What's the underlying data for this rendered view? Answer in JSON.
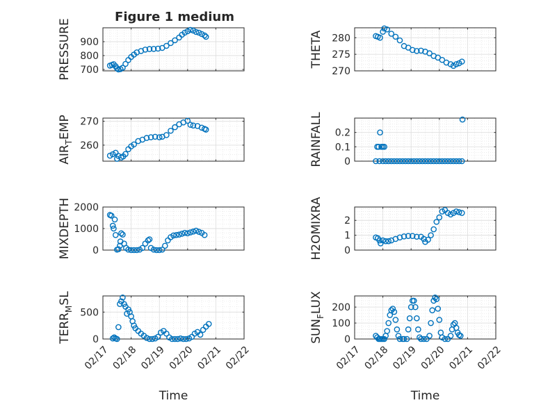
{
  "figure": {
    "title": "Figure 1 medium",
    "xlabel": "Time",
    "background": "#ffffff",
    "axis_color": "#262626",
    "grid_color": "#dfdfdf",
    "marker_color": "#0072bd"
  },
  "chart_data": [
    {
      "type": "scatter",
      "title": "Figure 1 medium",
      "ylabel": "PRESSURE",
      "ylabel_sub": "",
      "xlim": [
        "2024-02-17",
        "2024-02-22"
      ],
      "ylim": [
        690,
        1000
      ],
      "yticks": [
        700,
        800,
        900
      ],
      "xtick_labels": [],
      "xlabel": "",
      "grid": "on",
      "points": [
        [
          0.25,
          728
        ],
        [
          0.32,
          733
        ],
        [
          0.38,
          738
        ],
        [
          0.45,
          723
        ],
        [
          0.5,
          708
        ],
        [
          0.55,
          700
        ],
        [
          0.62,
          703
        ],
        [
          0.7,
          712
        ],
        [
          0.8,
          740
        ],
        [
          0.9,
          768
        ],
        [
          1.0,
          790
        ],
        [
          1.1,
          807
        ],
        [
          1.2,
          823
        ],
        [
          1.35,
          833
        ],
        [
          1.5,
          843
        ],
        [
          1.65,
          847
        ],
        [
          1.8,
          848
        ],
        [
          1.95,
          850
        ],
        [
          2.1,
          855
        ],
        [
          2.25,
          870
        ],
        [
          2.4,
          890
        ],
        [
          2.55,
          910
        ],
        [
          2.7,
          930
        ],
        [
          2.8,
          950
        ],
        [
          2.9,
          965
        ],
        [
          3.0,
          975
        ],
        [
          3.1,
          985
        ],
        [
          3.2,
          980
        ],
        [
          3.3,
          970
        ],
        [
          3.4,
          965
        ],
        [
          3.5,
          955
        ],
        [
          3.6,
          945
        ],
        [
          3.65,
          935
        ]
      ]
    },
    {
      "type": "scatter",
      "title": "",
      "ylabel": "THETA",
      "ylabel_sub": "",
      "xlim": [
        "2024-02-17",
        "2024-02-22"
      ],
      "ylim": [
        270,
        283
      ],
      "yticks": [
        270,
        275,
        280
      ],
      "xtick_labels": [],
      "xlabel": "",
      "grid": "on",
      "points": [
        [
          0.75,
          280.5
        ],
        [
          0.82,
          280.3
        ],
        [
          0.9,
          280.0
        ],
        [
          1.0,
          281.8
        ],
        [
          1.05,
          282.8
        ],
        [
          1.15,
          282.5
        ],
        [
          1.3,
          281.2
        ],
        [
          1.45,
          280.3
        ],
        [
          1.6,
          279.2
        ],
        [
          1.75,
          277.5
        ],
        [
          1.9,
          277.0
        ],
        [
          2.05,
          276.3
        ],
        [
          2.2,
          276.0
        ],
        [
          2.35,
          276.1
        ],
        [
          2.5,
          275.8
        ],
        [
          2.65,
          275.3
        ],
        [
          2.8,
          274.5
        ],
        [
          2.95,
          274.0
        ],
        [
          3.1,
          273.3
        ],
        [
          3.25,
          272.5
        ],
        [
          3.4,
          272.0
        ],
        [
          3.5,
          271.5
        ],
        [
          3.6,
          272.0
        ],
        [
          3.7,
          272.3
        ],
        [
          3.8,
          272.8
        ]
      ]
    },
    {
      "type": "scatter",
      "title": "",
      "ylabel": "AIR",
      "ylabel_sub": "T",
      "ylabel_after": "EMP",
      "xlim": [
        "2024-02-17",
        "2024-02-22"
      ],
      "ylim": [
        253.3,
        271.3
      ],
      "yticks": [
        260,
        270
      ],
      "xtick_labels": [],
      "xlabel": "",
      "grid": "on",
      "points": [
        [
          0.25,
          255.6
        ],
        [
          0.35,
          256.2
        ],
        [
          0.45,
          256.8
        ],
        [
          0.5,
          254.3
        ],
        [
          0.55,
          255.5
        ],
        [
          0.65,
          254.8
        ],
        [
          0.72,
          255.3
        ],
        [
          0.8,
          256.3
        ],
        [
          0.9,
          258.3
        ],
        [
          1.0,
          259.5
        ],
        [
          1.1,
          260.3
        ],
        [
          1.25,
          261.7
        ],
        [
          1.4,
          262.3
        ],
        [
          1.55,
          263.0
        ],
        [
          1.7,
          263.3
        ],
        [
          1.85,
          263.5
        ],
        [
          2.0,
          263.3
        ],
        [
          2.1,
          263.5
        ],
        [
          2.25,
          264.2
        ],
        [
          2.4,
          266.0
        ],
        [
          2.55,
          267.5
        ],
        [
          2.7,
          268.7
        ],
        [
          2.85,
          269.5
        ],
        [
          3.0,
          270.2
        ],
        [
          3.1,
          268.5
        ],
        [
          3.2,
          268.2
        ],
        [
          3.35,
          268.0
        ],
        [
          3.5,
          267.3
        ],
        [
          3.6,
          266.8
        ],
        [
          3.65,
          266.5
        ]
      ]
    },
    {
      "type": "scatter",
      "title": "",
      "ylabel": "RAINFALL",
      "ylabel_sub": "",
      "xlim": [
        "2024-02-17",
        "2024-02-22"
      ],
      "ylim": [
        0,
        0.3
      ],
      "yticks": [
        0,
        0.1,
        0.2
      ],
      "xtick_labels": [],
      "xlabel": "",
      "grid": "on",
      "points": [
        [
          0.75,
          0
        ],
        [
          0.8,
          0.1
        ],
        [
          0.85,
          0.1
        ],
        [
          0.88,
          0
        ],
        [
          0.9,
          0.2
        ],
        [
          0.95,
          0.1
        ],
        [
          1.0,
          0.1
        ],
        [
          1.05,
          0.1
        ],
        [
          1.0,
          0
        ],
        [
          1.1,
          0
        ],
        [
          1.2,
          0
        ],
        [
          1.3,
          0
        ],
        [
          1.4,
          0
        ],
        [
          1.5,
          0
        ],
        [
          1.6,
          0
        ],
        [
          1.7,
          0
        ],
        [
          1.8,
          0
        ],
        [
          1.9,
          0
        ],
        [
          2.0,
          0
        ],
        [
          2.1,
          0
        ],
        [
          2.2,
          0
        ],
        [
          2.3,
          0
        ],
        [
          2.4,
          0
        ],
        [
          2.5,
          0
        ],
        [
          2.6,
          0
        ],
        [
          2.7,
          0
        ],
        [
          2.8,
          0
        ],
        [
          2.9,
          0
        ],
        [
          3.0,
          0
        ],
        [
          3.1,
          0
        ],
        [
          3.2,
          0
        ],
        [
          3.3,
          0
        ],
        [
          3.4,
          0
        ],
        [
          3.5,
          0
        ],
        [
          3.6,
          0
        ],
        [
          3.7,
          0
        ],
        [
          3.8,
          0
        ],
        [
          3.82,
          0.29
        ]
      ]
    },
    {
      "type": "scatter",
      "title": "",
      "ylabel": "MIXDEPTH",
      "ylabel_sub": "",
      "xlim": [
        "2024-02-17",
        "2024-02-22"
      ],
      "ylim": [
        0,
        2000
      ],
      "yticks": [
        0,
        1000,
        2000
      ],
      "xtick_labels": [],
      "xlabel": "",
      "grid": "on",
      "points": [
        [
          0.25,
          1630
        ],
        [
          0.3,
          1600
        ],
        [
          0.35,
          1130
        ],
        [
          0.38,
          1000
        ],
        [
          0.42,
          1420
        ],
        [
          0.45,
          700
        ],
        [
          0.5,
          20
        ],
        [
          0.55,
          40
        ],
        [
          0.6,
          200
        ],
        [
          0.62,
          400
        ],
        [
          0.65,
          780
        ],
        [
          0.7,
          720
        ],
        [
          0.75,
          300
        ],
        [
          0.82,
          100
        ],
        [
          0.9,
          20
        ],
        [
          1.0,
          0
        ],
        [
          1.1,
          0
        ],
        [
          1.2,
          0
        ],
        [
          1.3,
          20
        ],
        [
          1.4,
          100
        ],
        [
          1.5,
          300
        ],
        [
          1.6,
          450
        ],
        [
          1.65,
          500
        ],
        [
          1.7,
          100
        ],
        [
          1.8,
          20
        ],
        [
          1.9,
          0
        ],
        [
          2.0,
          0
        ],
        [
          2.1,
          20
        ],
        [
          2.2,
          200
        ],
        [
          2.3,
          450
        ],
        [
          2.4,
          600
        ],
        [
          2.5,
          680
        ],
        [
          2.6,
          700
        ],
        [
          2.7,
          720
        ],
        [
          2.8,
          760
        ],
        [
          2.9,
          800
        ],
        [
          3.0,
          780
        ],
        [
          3.1,
          820
        ],
        [
          3.2,
          860
        ],
        [
          3.3,
          900
        ],
        [
          3.4,
          850
        ],
        [
          3.5,
          800
        ],
        [
          3.6,
          700
        ]
      ]
    },
    {
      "type": "scatter",
      "title": "",
      "ylabel": "H2OMIXRA",
      "ylabel_sub": "",
      "xlim": [
        "2024-02-17",
        "2024-02-22"
      ],
      "ylim": [
        0,
        2.9
      ],
      "yticks": [
        0,
        1,
        2
      ],
      "xtick_labels": [],
      "xlabel": "",
      "grid": "on",
      "points": [
        [
          0.75,
          0.85
        ],
        [
          0.82,
          0.8
        ],
        [
          0.88,
          0.65
        ],
        [
          0.92,
          0.45
        ],
        [
          1.0,
          0.65
        ],
        [
          1.1,
          0.6
        ],
        [
          1.2,
          0.6
        ],
        [
          1.3,
          0.65
        ],
        [
          1.45,
          0.75
        ],
        [
          1.6,
          0.85
        ],
        [
          1.75,
          0.92
        ],
        [
          1.9,
          0.95
        ],
        [
          2.05,
          0.95
        ],
        [
          2.2,
          0.9
        ],
        [
          2.35,
          0.9
        ],
        [
          2.45,
          0.75
        ],
        [
          2.5,
          0.55
        ],
        [
          2.6,
          0.7
        ],
        [
          2.7,
          1.0
        ],
        [
          2.8,
          1.4
        ],
        [
          2.9,
          1.9
        ],
        [
          3.0,
          2.2
        ],
        [
          3.1,
          2.6
        ],
        [
          3.2,
          2.7
        ],
        [
          3.3,
          2.5
        ],
        [
          3.4,
          2.4
        ],
        [
          3.5,
          2.5
        ],
        [
          3.6,
          2.6
        ],
        [
          3.7,
          2.55
        ],
        [
          3.8,
          2.5
        ]
      ]
    },
    {
      "type": "scatter",
      "title": "",
      "ylabel": "TERR",
      "ylabel_sub": "M",
      "ylabel_after": "SL",
      "xlim": [
        "2024-02-17",
        "2024-02-22"
      ],
      "ylim": [
        0,
        800
      ],
      "yticks": [
        0,
        500
      ],
      "xtick_labels": [
        "02/17",
        "02/18",
        "02/19",
        "02/20",
        "02/21",
        "02/22"
      ],
      "xlabel": "Time",
      "grid": "on",
      "points": [
        [
          0.35,
          10
        ],
        [
          0.4,
          30
        ],
        [
          0.45,
          10
        ],
        [
          0.5,
          0
        ],
        [
          0.55,
          220
        ],
        [
          0.6,
          650
        ],
        [
          0.65,
          700
        ],
        [
          0.7,
          770
        ],
        [
          0.75,
          650
        ],
        [
          0.8,
          600
        ],
        [
          0.85,
          470
        ],
        [
          0.9,
          550
        ],
        [
          0.95,
          500
        ],
        [
          1.0,
          420
        ],
        [
          1.05,
          330
        ],
        [
          1.1,
          250
        ],
        [
          1.15,
          200
        ],
        [
          1.25,
          150
        ],
        [
          1.35,
          100
        ],
        [
          1.45,
          60
        ],
        [
          1.55,
          20
        ],
        [
          1.65,
          0
        ],
        [
          1.75,
          0
        ],
        [
          1.85,
          10
        ],
        [
          1.95,
          40
        ],
        [
          2.05,
          120
        ],
        [
          2.15,
          150
        ],
        [
          2.25,
          100
        ],
        [
          2.35,
          30
        ],
        [
          2.45,
          0
        ],
        [
          2.55,
          0
        ],
        [
          2.65,
          0
        ],
        [
          2.75,
          10
        ],
        [
          2.85,
          0
        ],
        [
          2.95,
          0
        ],
        [
          3.05,
          10
        ],
        [
          3.15,
          40
        ],
        [
          3.25,
          100
        ],
        [
          3.35,
          130
        ],
        [
          3.45,
          80
        ],
        [
          3.55,
          170
        ],
        [
          3.65,
          230
        ],
        [
          3.75,
          280
        ]
      ]
    },
    {
      "type": "scatter",
      "title": "",
      "ylabel": "SUN",
      "ylabel_sub": "F",
      "ylabel_after": "LUX",
      "xlim": [
        "2024-02-17",
        "2024-02-22"
      ],
      "ylim": [
        0,
        270
      ],
      "yticks": [
        0,
        100,
        200
      ],
      "xtick_labels": [
        "02/17",
        "02/18",
        "02/19",
        "02/20",
        "02/21",
        "02/22"
      ],
      "xlabel": "Time",
      "grid": "on",
      "points": [
        [
          0.75,
          20
        ],
        [
          0.8,
          10
        ],
        [
          0.85,
          0
        ],
        [
          0.9,
          0
        ],
        [
          0.95,
          0
        ],
        [
          1.0,
          0
        ],
        [
          1.05,
          0
        ],
        [
          1.1,
          20
        ],
        [
          1.15,
          50
        ],
        [
          1.2,
          100
        ],
        [
          1.25,
          150
        ],
        [
          1.3,
          180
        ],
        [
          1.35,
          190
        ],
        [
          1.4,
          170
        ],
        [
          1.45,
          120
        ],
        [
          1.5,
          60
        ],
        [
          1.55,
          20
        ],
        [
          1.6,
          0
        ],
        [
          1.7,
          0
        ],
        [
          1.75,
          0
        ],
        [
          1.85,
          0
        ],
        [
          1.9,
          60
        ],
        [
          1.95,
          130
        ],
        [
          2.0,
          200
        ],
        [
          2.05,
          240
        ],
        [
          2.1,
          240
        ],
        [
          2.15,
          200
        ],
        [
          2.2,
          130
        ],
        [
          2.25,
          60
        ],
        [
          2.3,
          10
        ],
        [
          2.35,
          0
        ],
        [
          2.45,
          0
        ],
        [
          2.55,
          0
        ],
        [
          2.65,
          20
        ],
        [
          2.7,
          100
        ],
        [
          2.75,
          180
        ],
        [
          2.8,
          240
        ],
        [
          2.85,
          260
        ],
        [
          2.9,
          250
        ],
        [
          2.95,
          190
        ],
        [
          3.0,
          120
        ],
        [
          3.05,
          40
        ],
        [
          3.1,
          10
        ],
        [
          3.2,
          0
        ],
        [
          3.3,
          0
        ],
        [
          3.4,
          20
        ],
        [
          3.45,
          60
        ],
        [
          3.5,
          90
        ],
        [
          3.55,
          100
        ],
        [
          3.6,
          70
        ],
        [
          3.65,
          40
        ],
        [
          3.7,
          25
        ],
        [
          3.75,
          20
        ]
      ]
    }
  ]
}
